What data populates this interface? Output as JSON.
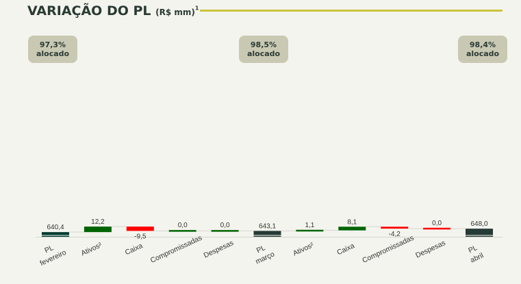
{
  "header": {
    "title": "VARIAÇÃO DO PL",
    "unit": "(R$ mm)",
    "footnote_mark": "1"
  },
  "badges": [
    {
      "value": "97,3%",
      "label": "alocado"
    },
    {
      "value": "98,5%",
      "label": "alocado"
    },
    {
      "value": "98,4%",
      "label": "alocado"
    }
  ],
  "colors": {
    "total_dark": "#003a2f",
    "total": "#263a36",
    "increase": "#006400",
    "decrease": "#ff0000",
    "badge": "#c9c9b3",
    "title": "#2a3a34",
    "rule": "#c9c43a"
  },
  "chart_data": {
    "type": "bar",
    "subtype": "waterfall",
    "categories": [
      [
        "PL",
        "fevereiro"
      ],
      [
        "Ativos²"
      ],
      [
        "Caixa"
      ],
      [
        "Compromissadas"
      ],
      [
        "Despesas"
      ],
      [
        "PL",
        "março"
      ],
      [
        "Ativos²"
      ],
      [
        "Caixa"
      ],
      [
        "Compromissadas"
      ],
      [
        "Despesas"
      ],
      [
        "PL",
        "abril"
      ]
    ],
    "values": [
      640.4,
      12.2,
      -9.5,
      0.0,
      0.0,
      643.1,
      1.1,
      8.1,
      -4.2,
      0.0,
      648.0
    ],
    "labels": [
      "640,4",
      "12,2",
      "-9,5",
      "0,0",
      "0,0",
      "643,1",
      "1,1",
      "8,1",
      "-4,2",
      "0,0",
      "648,0"
    ],
    "kinds": [
      "total",
      "delta",
      "delta",
      "delta",
      "delta",
      "total",
      "delta",
      "delta",
      "delta",
      "delta",
      "total"
    ],
    "delta_colors": [
      "",
      "increase",
      "decrease",
      "increase",
      "increase",
      "",
      "increase",
      "increase",
      "decrease",
      "decrease",
      ""
    ],
    "title": "VARIAÇÃO DO PL (R$ mm)",
    "xlabel": "",
    "ylabel": "",
    "grid": false,
    "legend": "none"
  }
}
